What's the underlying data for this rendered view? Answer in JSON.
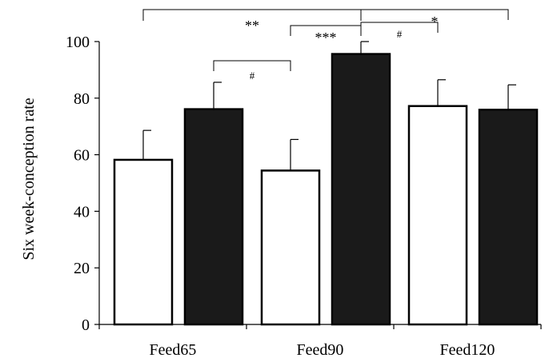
{
  "chart_data": {
    "type": "bar",
    "title": "",
    "xlabel": "",
    "ylabel": "Six week-conception rate",
    "ylim": [
      0,
      100
    ],
    "yticks": [
      0,
      20,
      40,
      60,
      80,
      100
    ],
    "grid": false,
    "categories": [
      "Feed65",
      "Feed90",
      "Feed120"
    ],
    "series": [
      {
        "fill": "#ffffff",
        "stroke": "#000000",
        "values": [
          58.2,
          54.4,
          77.2
        ],
        "error": [
          10.4,
          11.0,
          9.3
        ]
      },
      {
        "fill": "#1a1a1a",
        "stroke": "#000000",
        "values": [
          76.1,
          95.6,
          75.9
        ],
        "error": [
          9.5,
          4.4,
          8.8
        ]
      }
    ],
    "significance": [
      {
        "label": "**",
        "from": [
          0,
          0
        ],
        "to": [
          1,
          1
        ]
      },
      {
        "label": "#",
        "from": [
          0,
          1
        ],
        "to": [
          1,
          0
        ]
      },
      {
        "label": "***",
        "from": [
          1,
          0
        ],
        "to": [
          1,
          1
        ]
      },
      {
        "label": "#",
        "from": [
          1,
          1
        ],
        "to": [
          2,
          0
        ]
      },
      {
        "label": "*",
        "from": [
          1,
          1
        ],
        "to": [
          2,
          1
        ]
      }
    ]
  }
}
